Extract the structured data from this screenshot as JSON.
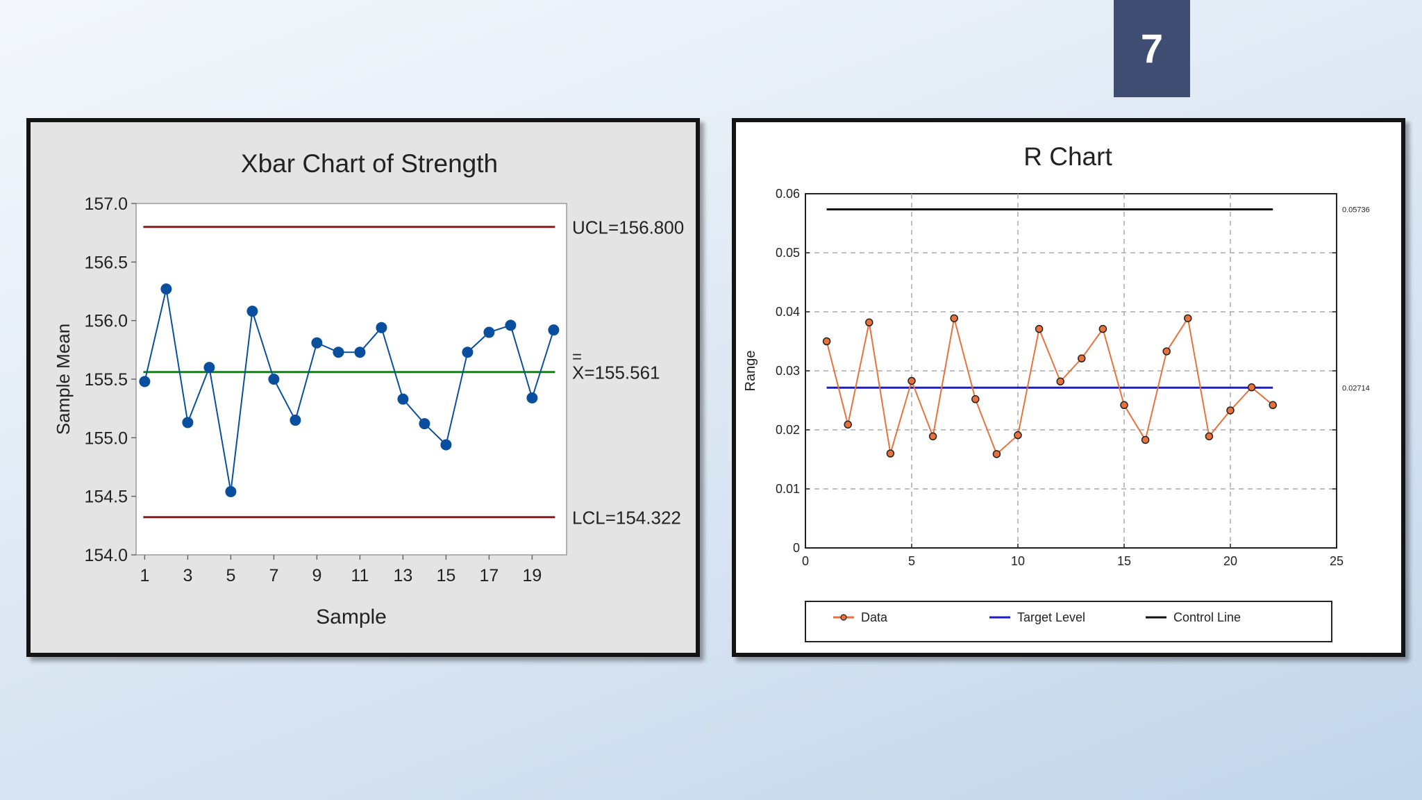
{
  "slide": {
    "page_number": "7"
  },
  "chart_data": [
    {
      "type": "line",
      "title": "Xbar Chart of Strength",
      "xlabel": "Sample",
      "ylabel": "Sample Mean",
      "x_ticks": [
        "1",
        "3",
        "5",
        "7",
        "9",
        "11",
        "13",
        "15",
        "17",
        "19"
      ],
      "y_ticks": [
        "154.0",
        "154.5",
        "155.0",
        "155.5",
        "156.0",
        "156.5",
        "157.0"
      ],
      "xlim": [
        0.6,
        20.6
      ],
      "ylim": [
        154.0,
        157.0
      ],
      "series": [
        {
          "x": [
            1,
            2,
            3,
            4,
            5,
            6,
            7,
            8,
            9,
            10,
            11,
            12,
            13,
            14,
            15,
            16,
            17,
            18,
            19,
            20
          ],
          "values": [
            155.48,
            156.27,
            155.13,
            155.6,
            154.54,
            156.08,
            155.5,
            155.15,
            155.81,
            155.73,
            155.73,
            155.94,
            155.33,
            155.12,
            154.94,
            155.73,
            155.9,
            155.96,
            155.34,
            155.92
          ],
          "color": "#0a4f9e"
        }
      ],
      "reference_lines": [
        {
          "label": "UCL=156.800",
          "value": 156.8,
          "color": "#8b1a1a"
        },
        {
          "label": "X=155.561",
          "overline": "=",
          "value": 155.561,
          "color": "#1d7a1d"
        },
        {
          "label": "LCL=154.322",
          "value": 154.322,
          "color": "#8b1a1a"
        }
      ],
      "grid": false
    },
    {
      "type": "line",
      "title": "R Chart",
      "xlabel": "",
      "ylabel": "Range",
      "x_ticks": [
        "0",
        "5",
        "10",
        "15",
        "20",
        "25"
      ],
      "y_ticks": [
        "0",
        "0.01",
        "0.02",
        "0.03",
        "0.04",
        "0.05",
        "0.06"
      ],
      "xlim": [
        0,
        25
      ],
      "ylim": [
        0,
        0.06
      ],
      "series": [
        {
          "name": "Data",
          "x": [
            1,
            2,
            3,
            4,
            5,
            6,
            7,
            8,
            9,
            10,
            11,
            12,
            13,
            14,
            15,
            16,
            17,
            18,
            19,
            20,
            21,
            22
          ],
          "values": [
            0.035,
            0.0209,
            0.0382,
            0.016,
            0.0283,
            0.0189,
            0.0389,
            0.0252,
            0.0159,
            0.0191,
            0.0371,
            0.0282,
            0.0321,
            0.0371,
            0.0242,
            0.0183,
            0.0333,
            0.0389,
            0.0189,
            0.0233,
            0.0272,
            0.0242
          ],
          "color": "#e8713c"
        }
      ],
      "reference_lines": [
        {
          "name": "Target Level",
          "label": "0.02714",
          "value": 0.02714,
          "x_range": [
            1,
            22
          ],
          "color": "#1c1ccc"
        },
        {
          "name": "Control Line",
          "label": "0.05736",
          "value": 0.05736,
          "x_range": [
            1,
            22
          ],
          "color": "#111111"
        }
      ],
      "grid": true,
      "legend": "bottom"
    }
  ]
}
